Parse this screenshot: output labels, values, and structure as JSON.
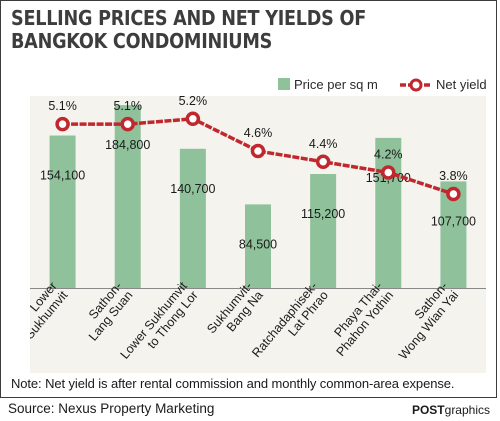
{
  "chart_data": {
    "type": "bar",
    "title_lines": [
      "SELLING PRICES AND NET YIELDS OF",
      "BANGKOK CONDOMINIUMS"
    ],
    "categories": [
      [
        "Lower",
        "Sukhumvit"
      ],
      [
        "Sathon-",
        "Lang Suan"
      ],
      [
        "Lower Sukhumvit",
        "to Thong Lor"
      ],
      [
        "Sukhumvit-",
        "Bang Na"
      ],
      [
        "Ratchadaphisek-",
        "Lat Phrao"
      ],
      [
        "Phaya Thai-",
        "Phahon Yothin"
      ],
      [
        "Sathon-",
        "Wong Wian Yai"
      ]
    ],
    "series": [
      {
        "name": "Price per sq m",
        "type": "bar",
        "values": [
          154100,
          184800,
          140700,
          84500,
          115200,
          151700,
          107700
        ],
        "labels": [
          "154,100",
          "184,800",
          "140,700",
          "84,500",
          "115,200",
          "151,700",
          "107,700"
        ],
        "color": "#8fc19b"
      },
      {
        "name": "Net yield",
        "type": "line",
        "values": [
          5.1,
          5.1,
          5.2,
          4.6,
          4.4,
          4.2,
          3.8
        ],
        "labels": [
          "5.1%",
          "5.1%",
          "5.2%",
          "4.6%",
          "4.4%",
          "4.2%",
          "3.8%"
        ],
        "color": "#c0282e"
      }
    ],
    "price_range": [
      0,
      190000
    ],
    "yield_range": [
      2.05,
      5.55
    ],
    "grid": false,
    "legend": "top-right",
    "note": "Note: Net yield is after rental commission and monthly common-area expense."
  },
  "footer": {
    "source": "Source: Nexus Property Marketing",
    "credit_bold": "POST",
    "credit_rest": "graphics"
  }
}
